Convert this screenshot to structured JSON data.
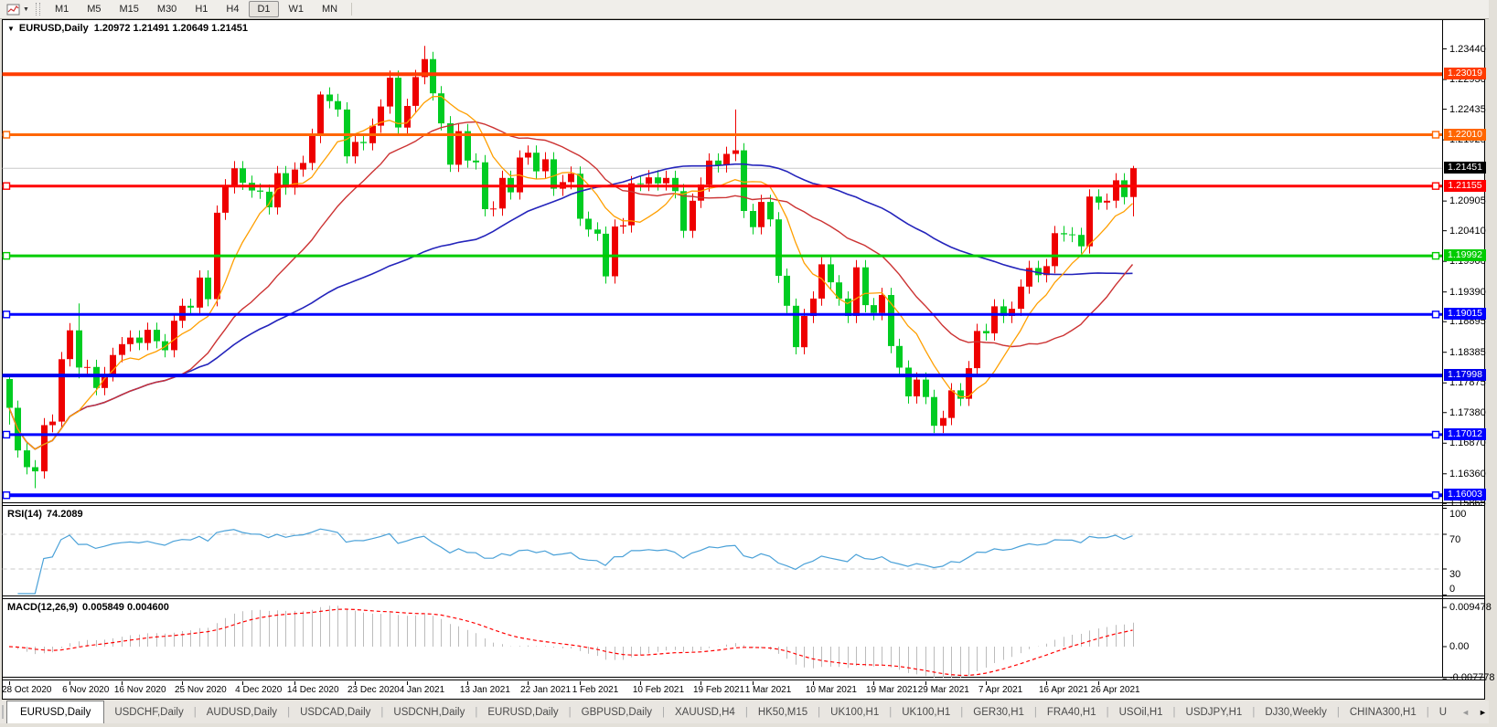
{
  "toolbar": {
    "timeframes": [
      "M1",
      "M5",
      "M15",
      "M30",
      "H1",
      "H4",
      "D1",
      "W1",
      "MN"
    ],
    "active_timeframe": "D1"
  },
  "chart": {
    "collapse_icon_glyph": "▼",
    "title_symbol": "EURUSD,Daily",
    "title_ohlc": "1.20972 1.21491 1.20649 1.21451",
    "price_axis_ticks": [
      "1.23440",
      "1.22930",
      "1.22435",
      "1.21925",
      "1.20905",
      "1.20410",
      "1.19900",
      "1.19390",
      "1.18895",
      "1.18385",
      "1.17875",
      "1.17380",
      "1.16870",
      "1.16360",
      "1.15865"
    ],
    "current_price": {
      "label": "1.21451",
      "price": 1.21451
    },
    "hlines": [
      {
        "price": 1.23019,
        "label": "1.23019",
        "color": "#ff3c00",
        "width": 4,
        "endpoints": false
      },
      {
        "price": 1.2201,
        "label": "1.22010",
        "color": "#ff6600",
        "width": 3,
        "endpoints": true
      },
      {
        "price": 1.21155,
        "label": "1.21155",
        "color": "#ff0000",
        "width": 3,
        "endpoints": true
      },
      {
        "price": 1.19992,
        "label": "1.19992",
        "color": "#00cc00",
        "width": 3,
        "endpoints": true
      },
      {
        "price": 1.19015,
        "label": "1.19015",
        "color": "#0000ff",
        "width": 3,
        "endpoints": true
      },
      {
        "price": 1.17998,
        "label": "1.17998",
        "color": "#0000ee",
        "width": 4,
        "endpoints": false
      },
      {
        "price": 1.17012,
        "label": "1.17012",
        "color": "#0000ff",
        "width": 3,
        "endpoints": true
      },
      {
        "price": 1.16003,
        "label": "1.16003",
        "color": "#0000ff",
        "width": 4,
        "endpoints": true
      }
    ],
    "price_range": {
      "max": 1.2392,
      "min": 1.159
    },
    "colors": {
      "candle_up": "#ee0000",
      "candle_down": "#00cc22",
      "ma_fast": "#ff9f00",
      "ma_mid": "#cc3333",
      "ma_slow": "#2424bb",
      "current_line": "#c8c8c8",
      "current_badge_bg": "#000000"
    },
    "ma_periods": {
      "fast": 8,
      "mid": 21,
      "slow": 55
    },
    "date_labels": [
      {
        "t": "28 Oct 2020",
        "i": 0
      },
      {
        "t": "6 Nov 2020",
        "i": 7
      },
      {
        "t": "16 Nov 2020",
        "i": 13
      },
      {
        "t": "25 Nov 2020",
        "i": 20
      },
      {
        "t": "4 Dec 2020",
        "i": 27
      },
      {
        "t": "14 Dec 2020",
        "i": 33
      },
      {
        "t": "23 Dec 2020",
        "i": 40
      },
      {
        "t": "4 Jan 2021",
        "i": 46
      },
      {
        "t": "13 Jan 2021",
        "i": 53
      },
      {
        "t": "22 Jan 2021",
        "i": 60
      },
      {
        "t": "1 Feb 2021",
        "i": 66
      },
      {
        "t": "10 Feb 2021",
        "i": 73
      },
      {
        "t": "19 Feb 2021",
        "i": 80
      },
      {
        "t": "1 Mar 2021",
        "i": 86
      },
      {
        "t": "10 Mar 2021",
        "i": 93
      },
      {
        "t": "19 Mar 2021",
        "i": 100
      },
      {
        "t": "29 Mar 2021",
        "i": 106
      },
      {
        "t": "7 Apr 2021",
        "i": 113
      },
      {
        "t": "16 Apr 2021",
        "i": 120
      },
      {
        "t": "26 Apr 2021",
        "i": 126
      }
    ]
  },
  "chart_data": {
    "type": "candlestick",
    "symbol": "EURUSD",
    "timeframe": "Daily",
    "visible_price_range": [
      1.159,
      1.2392
    ],
    "first_open": 1.1794,
    "closes": [
      1.1746,
      1.1675,
      1.1647,
      1.164,
      1.1717,
      1.1723,
      1.1827,
      1.1875,
      1.1813,
      1.1814,
      1.1779,
      1.1802,
      1.1834,
      1.1852,
      1.1863,
      1.1854,
      1.1876,
      1.1857,
      1.1842,
      1.1891,
      1.1916,
      1.1913,
      1.1963,
      1.1927,
      1.2071,
      1.2115,
      1.2145,
      1.2121,
      1.2108,
      1.2106,
      1.208,
      1.2137,
      1.2113,
      1.2143,
      1.2154,
      1.2199,
      1.2268,
      1.2257,
      1.2243,
      1.2165,
      1.2189,
      1.2187,
      1.2216,
      1.2248,
      1.2296,
      1.2213,
      1.2249,
      1.2297,
      1.2327,
      1.227,
      1.222,
      1.2151,
      1.2207,
      1.2158,
      1.2155,
      1.2077,
      1.2078,
      1.2129,
      1.2105,
      1.2163,
      1.2171,
      1.214,
      1.216,
      1.2111,
      1.2122,
      1.2136,
      1.2061,
      1.2043,
      1.2036,
      1.1965,
      1.2048,
      1.205,
      1.212,
      1.2119,
      1.213,
      1.212,
      1.2129,
      1.2107,
      1.2041,
      1.2091,
      1.2118,
      1.2158,
      1.215,
      1.2169,
      1.2175,
      1.2074,
      1.2047,
      1.2089,
      1.206,
      1.1966,
      1.1916,
      1.1847,
      1.1899,
      1.1928,
      1.1985,
      1.1955,
      1.1928,
      1.1899,
      1.198,
      1.1917,
      1.1904,
      1.1934,
      1.1849,
      1.1813,
      1.1765,
      1.1793,
      1.1764,
      1.1716,
      1.1729,
      1.1775,
      1.1761,
      1.1812,
      1.1874,
      1.187,
      1.1915,
      1.1899,
      1.1911,
      1.1948,
      1.1979,
      1.1967,
      1.1982,
      1.2037,
      1.2035,
      1.2034,
      1.2015,
      1.2098,
      1.2088,
      1.2091,
      1.2125,
      1.2097,
      1.21451
    ],
    "default_wick": 0.0012,
    "wick_overrides": {
      "0": [
        1.18,
        1.1718
      ],
      "3": [
        null,
        1.1612
      ],
      "8": [
        1.192,
        1.1795
      ],
      "36": [
        1.2273,
        null
      ],
      "48": [
        1.2349,
        null
      ],
      "84": [
        1.2243,
        null
      ],
      "107": [
        null,
        1.1704
      ]
    },
    "last_candle": {
      "o": 1.20972,
      "h": 1.21491,
      "l": 1.20649,
      "c": 1.21451
    }
  },
  "rsi": {
    "name": "RSI(14)",
    "value": "74.2089",
    "period": 14,
    "levels": [
      70,
      30
    ],
    "axis_ticks": [
      "100",
      "70",
      "30",
      "0"
    ],
    "color": "#4aa1d8"
  },
  "macd": {
    "name": "MACD(12,26,9)",
    "values": "0.005849 0.004600",
    "fast": 12,
    "slow": 26,
    "signal": 9,
    "axis_ticks": [
      "0.009478",
      "0.00",
      "-0.007778"
    ],
    "hist_color": "#bcbcbc",
    "signal_color": "#ff0000"
  },
  "tabs": {
    "separator": "|",
    "items": [
      {
        "label": "EURUSD,Daily",
        "active": true
      },
      {
        "label": "USDCHF,Daily",
        "active": false
      },
      {
        "label": "AUDUSD,Daily",
        "active": false
      },
      {
        "label": "USDCAD,Daily",
        "active": false
      },
      {
        "label": "USDCNH,Daily",
        "active": false
      },
      {
        "label": "EURUSD,Daily",
        "active": false
      },
      {
        "label": "GBPUSD,Daily",
        "active": false
      },
      {
        "label": "XAUUSD,H4",
        "active": false
      },
      {
        "label": "HK50,M15",
        "active": false
      },
      {
        "label": "UK100,H1",
        "active": false
      },
      {
        "label": "UK100,H1",
        "active": false
      },
      {
        "label": "GER30,H1",
        "active": false
      },
      {
        "label": "FRA40,H1",
        "active": false
      },
      {
        "label": "USOil,H1",
        "active": false
      },
      {
        "label": "USDJPY,H1",
        "active": false
      },
      {
        "label": "DJ30,Weekly",
        "active": false
      },
      {
        "label": "CHINA300,H1",
        "active": false
      },
      {
        "label": "U",
        "active": false
      }
    ],
    "scroll_left": "◄",
    "scroll_right": "►"
  }
}
